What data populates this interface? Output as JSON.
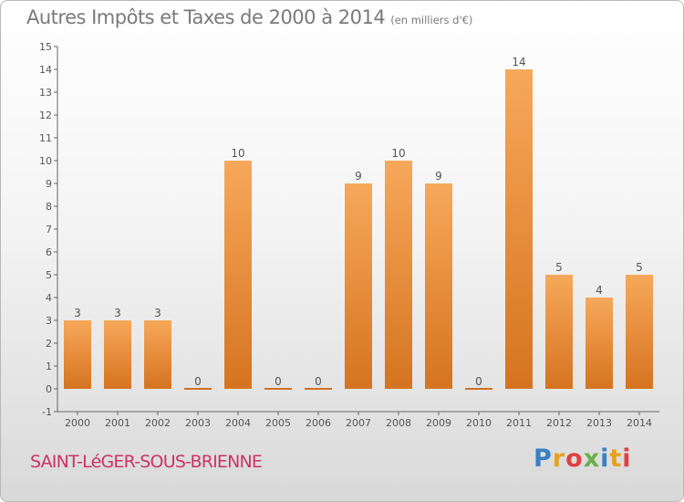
{
  "title": {
    "main": "Autres Impôts et Taxes de 2000 à 2014",
    "sub": "(en milliers d'€)"
  },
  "town": "SAINT-LéGER-SOUS-BRIENNE",
  "logo": {
    "text": "Proxiti",
    "colors": [
      "#3a7fc4",
      "#e8a020",
      "#e04040",
      "#6ab04c",
      "#3a7fc4",
      "#e8a020",
      "#e04040"
    ]
  },
  "chart_data": {
    "type": "bar",
    "categories": [
      "2000",
      "2001",
      "2002",
      "2003",
      "2004",
      "2005",
      "2006",
      "2007",
      "2008",
      "2009",
      "2010",
      "2011",
      "2012",
      "2013",
      "2014"
    ],
    "values": [
      3,
      3,
      3,
      0,
      10,
      0,
      0,
      9,
      10,
      9,
      0,
      14,
      5,
      4,
      5
    ],
    "value_labels": [
      "3",
      "3",
      "3",
      "0",
      "10",
      "0",
      "0",
      "9",
      "10",
      "9",
      "0",
      "14",
      "5",
      "4",
      "5"
    ],
    "ylim": [
      -1,
      15
    ],
    "yticks": [
      -1,
      0,
      1,
      2,
      3,
      4,
      5,
      6,
      7,
      8,
      9,
      10,
      11,
      12,
      13,
      14,
      15
    ],
    "ytick_labels": [
      "-1",
      "0",
      "1",
      "2",
      "3",
      "4",
      "5",
      "6",
      "7",
      "8",
      "9",
      "10",
      "11",
      "12",
      "13",
      "14",
      "15"
    ],
    "grid": false,
    "bar_color": "#f0a050",
    "bar_color_dark": "#d07020"
  }
}
